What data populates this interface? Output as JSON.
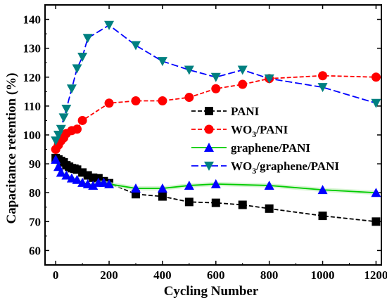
{
  "chart_data": {
    "type": "line",
    "title": "",
    "xlabel": "Cycling Number",
    "ylabel": "Capacitance retention (%)",
    "xlim": [
      -40,
      1220
    ],
    "ylim": [
      55,
      145
    ],
    "xticks": [
      0,
      200,
      400,
      600,
      800,
      1000,
      1200
    ],
    "yticks": [
      60,
      70,
      80,
      90,
      100,
      110,
      120,
      130,
      140
    ],
    "legend_position": "center-right",
    "grid": false,
    "series": [
      {
        "name": "PANI",
        "legend_text": {
          "main": "PANI"
        },
        "color": "#000000",
        "marker": "square",
        "x": [
          0,
          10,
          20,
          30,
          40,
          50,
          60,
          70,
          80,
          100,
          120,
          140,
          160,
          180,
          200,
          300,
          400,
          500,
          600,
          700,
          800,
          1000,
          1200
        ],
        "y": [
          92,
          91.5,
          91,
          90.5,
          89.5,
          89,
          88.5,
          88.3,
          88,
          87,
          86,
          85.2,
          85,
          84,
          83.3,
          79.5,
          78.7,
          76.8,
          76.5,
          75.8,
          74.5,
          72,
          70
        ]
      },
      {
        "name": "WO3/PANI",
        "legend_text": {
          "main": "WO",
          "sub": "3",
          "rest": "/PANI"
        },
        "color": "#ff0000",
        "marker": "circle",
        "x": [
          0,
          10,
          20,
          30,
          40,
          60,
          80,
          100,
          200,
          300,
          400,
          500,
          600,
          700,
          800,
          1000,
          1200
        ],
        "y": [
          95,
          96.5,
          98,
          99,
          100.5,
          101.5,
          102,
          105,
          111,
          111.8,
          111.8,
          113,
          116,
          117.5,
          119.5,
          120.5,
          120
        ]
      },
      {
        "name": "graphene/PANI",
        "legend_text": {
          "main": "graphene/PANI"
        },
        "color": "#00cc00",
        "marker_color": "#0000ff",
        "marker": "triangle-up",
        "x": [
          0,
          10,
          20,
          40,
          60,
          80,
          100,
          120,
          140,
          160,
          180,
          200,
          300,
          400,
          500,
          600,
          800,
          1000,
          1200
        ],
        "y": [
          91.5,
          89,
          87,
          86,
          85,
          84.5,
          83.5,
          83,
          82.5,
          83.5,
          83.5,
          83,
          81.5,
          81.5,
          82.5,
          83,
          82.5,
          81,
          80
        ]
      },
      {
        "name": "WO3/graphene/PANI",
        "legend_text": {
          "main": "WO",
          "sub": "3",
          "rest": "/graphene/PANI"
        },
        "color": "#0000ff",
        "marker_color": "#008080",
        "marker": "triangle-down",
        "x": [
          0,
          10,
          20,
          30,
          40,
          60,
          80,
          100,
          120,
          200,
          300,
          400,
          500,
          600,
          700,
          800,
          1000,
          1200
        ],
        "y": [
          98,
          100,
          102,
          106,
          109,
          116,
          123,
          127,
          133.5,
          138,
          131,
          125.5,
          122.5,
          120,
          122.5,
          119.5,
          116.5,
          111
        ]
      }
    ]
  }
}
